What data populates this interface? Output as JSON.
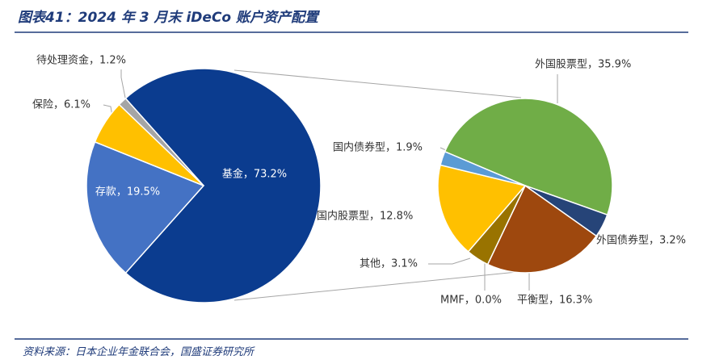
{
  "title": "图表41：2024 年 3 月末 iDeCo 账户资产配置",
  "source": "资料来源：日本企业年金联合会，国盛证券研究所",
  "chart_data": [
    {
      "type": "pie",
      "values": [
        73.2,
        19.5,
        6.1,
        1.2
      ],
      "value_labels": [
        "基金，73.2%",
        "存款，19.5%",
        "保险，6.1%",
        "待处理资金，1.2%"
      ],
      "colors": [
        "#0b3c8f",
        "#4472c4",
        "#ffc000",
        "#a5a5a5"
      ]
    },
    {
      "type": "pie",
      "values": [
        35.9,
        3.2,
        16.3,
        0.0,
        3.1,
        12.8,
        1.9
      ],
      "value_labels": [
        "外国股票型，35.9%",
        "外国债券型，3.2%",
        "平衡型，16.3%",
        "MMF，0.0%",
        "其他，3.1%",
        "国内股票型，12.8%",
        "国内债券型，1.9%"
      ],
      "colors": [
        "#70ad47",
        "#264478",
        "#9e480e",
        "#636363",
        "#997300",
        "#ffc000",
        "#5b9bd5"
      ]
    }
  ]
}
